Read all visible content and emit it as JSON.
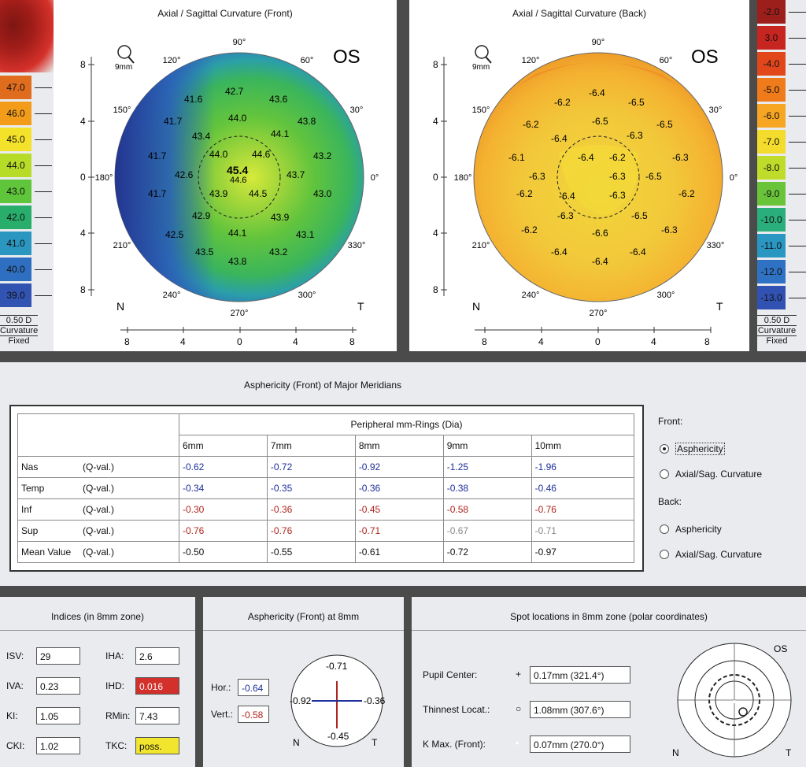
{
  "map_front": {
    "title": "Axial / Sagittal Curvature (Front)",
    "eye": "OS",
    "zoom_label": "9mm",
    "center_value": "45.4",
    "nasal": "N",
    "temporal": "T",
    "angles": [
      "90°",
      "60°",
      "30°",
      "0°",
      "330°",
      "300°",
      "270°",
      "240°",
      "210°",
      "180°",
      "150°",
      "120°"
    ],
    "y_ticks": [
      "8",
      "4",
      "0",
      "4",
      "8"
    ],
    "x_ticks": [
      "8",
      "4",
      "0",
      "4",
      "8"
    ],
    "values": [
      "42.7",
      "41.6",
      "43.6",
      "41.7",
      "44.0",
      "43.8",
      "43.4",
      "44.1",
      "41.7",
      "44.0",
      "44.6",
      "43.2",
      "42.6",
      "43.7",
      "41.7",
      "43.9",
      "44.5",
      "43.0",
      "42.9",
      "43.9",
      "42.5",
      "44.1",
      "43.1",
      "43.5",
      "43.8",
      "43.2"
    ],
    "center_sub": "44.6"
  },
  "map_back": {
    "title": "Axial / Sagittal Curvature (Back)",
    "eye": "OS",
    "zoom_label": "9mm",
    "nasal": "N",
    "temporal": "T",
    "angles": [
      "90°",
      "60°",
      "30°",
      "0°",
      "330°",
      "300°",
      "270°",
      "240°",
      "210°",
      "180°",
      "150°",
      "120°"
    ],
    "y_ticks": [
      "8",
      "4",
      "0",
      "4",
      "8"
    ],
    "x_ticks": [
      "8",
      "4",
      "0",
      "4",
      "8"
    ],
    "values": [
      "-6.4",
      "-6.2",
      "-6.5",
      "-6.5",
      "-6.2",
      "-6.5",
      "-6.4",
      "-6.3",
      "-6.4",
      "-6.1",
      "-6.2",
      "-6.3",
      "-6.3",
      "-6.3",
      "-6.2",
      "-6.5",
      "-6.2",
      "-6.4",
      "-6.3",
      "-6.3",
      "-6.5",
      "-6.2",
      "-6.6",
      "-6.3",
      "-6.4",
      "-6.4",
      "-6.4"
    ]
  },
  "scale_left": {
    "values": [
      "47.0",
      "46.0",
      "45.0",
      "44.0",
      "43.0",
      "42.0",
      "41.0",
      "40.0",
      "39.0"
    ],
    "colors": [
      "#e06d1d",
      "#f39c1a",
      "#f4e12a",
      "#b6dc28",
      "#5fc53a",
      "#28ad6b",
      "#2b96c0",
      "#2f6fc1",
      "#3153b2"
    ],
    "footer": [
      "0.50 D",
      "Curvature",
      "Fixed"
    ]
  },
  "scale_right": {
    "values": [
      "-2.0",
      "3.0",
      "-4.0",
      "-5.0",
      "-6.0",
      "-7.0",
      "-8.0",
      "-9.0",
      "-10.0",
      "-11.0",
      "-12.0",
      "-13.0"
    ],
    "colors": [
      "#9d1f1c",
      "#c7251f",
      "#e2471c",
      "#ef7b1b",
      "#f6a623",
      "#f3dc2c",
      "#bfdc2a",
      "#69c43a",
      "#2aae7c",
      "#2a97c3",
      "#2f71c3",
      "#3252b3"
    ],
    "footer": [
      "0.50 D",
      "Curvature",
      "Fixed"
    ]
  },
  "asphericity_table": {
    "title": "Asphericity (Front) of Major Meridians",
    "group_header": "Peripheral mm-Rings (Dia)",
    "columns": [
      "6mm",
      "7mm",
      "8mm",
      "9mm",
      "10mm"
    ],
    "rows": [
      {
        "label": "Nas",
        "unit": "(Q-val.)",
        "color": "#1c2f9a",
        "values": [
          "-0.62",
          "-0.72",
          "-0.92",
          "-1.25",
          "-1.96"
        ]
      },
      {
        "label": "Temp",
        "unit": "(Q-val.)",
        "color": "#1c2f9a",
        "values": [
          "-0.34",
          "-0.35",
          "-0.36",
          "-0.38",
          "-0.46"
        ]
      },
      {
        "label": "Inf",
        "unit": "(Q-val.)",
        "color": "#b0241c",
        "values": [
          "-0.30",
          "-0.36",
          "-0.45",
          "-0.58",
          "-0.76"
        ]
      },
      {
        "label": "Sup",
        "unit": "(Q-val.)",
        "color": "#b0241c",
        "values": [
          "-0.76",
          "-0.76",
          "-0.71",
          "-0.67",
          "-0.71"
        ]
      },
      {
        "label": "Mean Value",
        "unit": "(Q-val.)",
        "color": "#111111",
        "values": [
          "-0.50",
          "-0.55",
          "-0.61",
          "-0.72",
          "-0.97"
        ]
      }
    ],
    "sup_gray_from": 3
  },
  "options": {
    "front_label": "Front:",
    "back_label": "Back:",
    "front": [
      {
        "label": "Asphericity",
        "selected": true
      },
      {
        "label": "Axial/Sag. Curvature",
        "selected": false
      }
    ],
    "back": [
      {
        "label": "Asphericity",
        "selected": false
      },
      {
        "label": "Axial/Sag. Curvature",
        "selected": false
      }
    ]
  },
  "indices": {
    "title": "Indices (in 8mm zone)",
    "items": [
      {
        "label": "ISV:",
        "value": "29"
      },
      {
        "label": "IHA:",
        "value": "2.6"
      },
      {
        "label": "IVA:",
        "value": "0.23"
      },
      {
        "label": "IHD:",
        "value": "0.016",
        "flag": "#d3302b"
      },
      {
        "label": "KI:",
        "value": "1.05"
      },
      {
        "label": "RMin:",
        "value": "7.43"
      },
      {
        "label": "CKI:",
        "value": "1.02"
      },
      {
        "label": "TKC:",
        "value": "poss.",
        "flag": "#f2e52e"
      }
    ]
  },
  "asph8": {
    "title": "Asphericity (Front) at 8mm",
    "hor_label": "Hor.:",
    "hor_value": "-0.64",
    "vert_label": "Vert.:",
    "vert_value": "-0.58",
    "top": "-0.71",
    "bottom": "-0.45",
    "left": "-0.92",
    "right": "-0.36",
    "n": "N",
    "t": "T"
  },
  "spots": {
    "title": "Spot locations in 8mm zone (polar coordinates)",
    "eye": "OS",
    "n": "N",
    "t": "T",
    "items": [
      {
        "label": "Pupil Center:",
        "symbol": "+",
        "value": "0.17mm (321.4°)"
      },
      {
        "label": "Thinnest Locat.:",
        "symbol": "○",
        "value": "1.08mm (307.6°)"
      },
      {
        "label": "K Max. (Front):",
        "symbol": "•",
        "value": "0.07mm (270.0°)"
      }
    ]
  },
  "colors": {
    "hor_value": "#1c2f9a",
    "vert_value": "#b0241c"
  }
}
